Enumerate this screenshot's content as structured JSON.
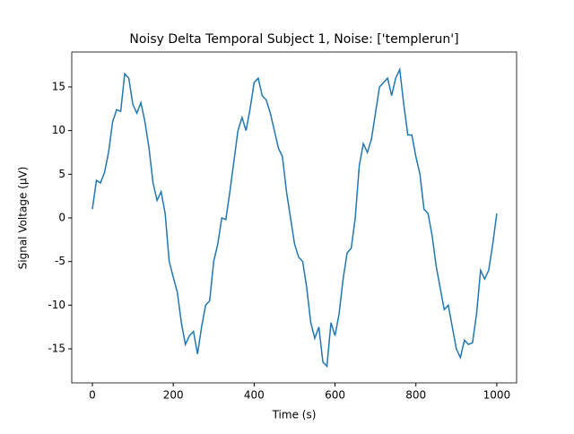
{
  "chart_data": {
    "type": "line",
    "title": "Noisy Delta Temporal Subject 1, Noise: ['templerun']",
    "x_label": "Time (s)",
    "y_label": "Signal Voltage (μV)",
    "x": [
      0,
      10,
      20,
      30,
      40,
      50,
      60,
      70,
      80,
      90,
      100,
      110,
      120,
      130,
      140,
      150,
      160,
      170,
      180,
      190,
      200,
      210,
      220,
      230,
      240,
      250,
      260,
      270,
      280,
      290,
      300,
      310,
      320,
      330,
      340,
      350,
      360,
      370,
      380,
      390,
      400,
      410,
      420,
      430,
      440,
      450,
      460,
      470,
      480,
      490,
      500,
      510,
      520,
      530,
      540,
      550,
      560,
      570,
      580,
      590,
      600,
      610,
      620,
      630,
      640,
      650,
      660,
      670,
      680,
      690,
      700,
      710,
      720,
      730,
      740,
      750,
      760,
      770,
      780,
      790,
      800,
      810,
      820,
      830,
      840,
      850,
      860,
      870,
      880,
      890,
      900,
      910,
      920,
      930,
      940,
      950,
      960,
      970,
      980,
      990,
      1000
    ],
    "series": [
      {
        "name": "signal",
        "color": "#1f77b4",
        "values": [
          1,
          4.3,
          4,
          5.2,
          7.5,
          11,
          12.4,
          12.2,
          16.5,
          16,
          13,
          12,
          13.2,
          11,
          8,
          4,
          2,
          3,
          0.5,
          -5,
          -6.8,
          -8.5,
          -12,
          -14.5,
          -13.5,
          -13,
          -15.6,
          -12.5,
          -10,
          -9.5,
          -5,
          -3,
          0,
          -0.2,
          3,
          6.5,
          10,
          11.5,
          10,
          12.5,
          15.5,
          16,
          14,
          13.5,
          12,
          10,
          8,
          7,
          3,
          0,
          -3,
          -4.5,
          -5,
          -8,
          -12,
          -13.8,
          -12.5,
          -16.5,
          -17,
          -12,
          -13.5,
          -11,
          -7,
          -4,
          -3.5,
          0,
          6,
          8.5,
          7.5,
          9,
          12,
          15,
          15.5,
          16,
          14,
          16,
          17,
          13,
          9.5,
          9.5,
          7,
          5,
          1,
          0.5,
          -2,
          -5.5,
          -8,
          -10.5,
          -10,
          -12.5,
          -15,
          -16,
          -14,
          -14.5,
          -14.3,
          -11,
          -6,
          -7,
          -6,
          -3,
          0.5
        ]
      }
    ],
    "xlim": [
      -51,
      1049
    ],
    "ylim": [
      -18.9,
      19.0
    ],
    "xticks": [
      0,
      200,
      400,
      600,
      800,
      1000
    ],
    "yticks": [
      -15,
      -10,
      -5,
      0,
      5,
      10,
      15
    ]
  }
}
